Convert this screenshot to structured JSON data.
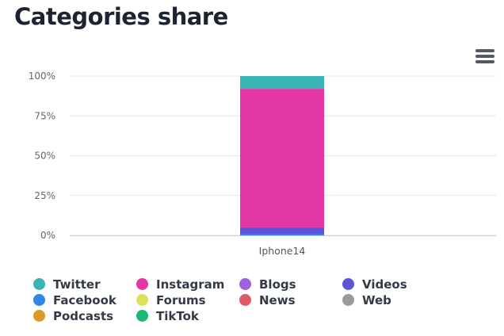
{
  "page": {
    "title": "Categories share"
  },
  "chart_data": {
    "type": "bar",
    "stacked": true,
    "percent": true,
    "categories": [
      "Iphone14"
    ],
    "ylim": [
      0,
      100
    ],
    "yticks": [
      "0%",
      "25%",
      "50%",
      "75%",
      "100%"
    ],
    "grid": true,
    "legend_position": "bottom",
    "series": [
      {
        "name": "Twitter",
        "color": "#3ab5b5",
        "values": [
          8
        ]
      },
      {
        "name": "Instagram",
        "color": "#e337a8",
        "values": [
          87
        ]
      },
      {
        "name": "Blogs",
        "color": "#a062e0",
        "values": [
          0
        ]
      },
      {
        "name": "Videos",
        "color": "#5d55d6",
        "values": [
          4
        ]
      },
      {
        "name": "Facebook",
        "color": "#2f86e8",
        "values": [
          1
        ]
      },
      {
        "name": "Forums",
        "color": "#dfe05a",
        "values": [
          0
        ]
      },
      {
        "name": "News",
        "color": "#e05a66",
        "values": [
          0
        ]
      },
      {
        "name": "Web",
        "color": "#9a9a9a",
        "values": [
          0
        ]
      },
      {
        "name": "Podcasts",
        "color": "#d99a26",
        "values": [
          0
        ]
      },
      {
        "name": "TikTok",
        "color": "#19b877",
        "values": [
          0
        ]
      }
    ]
  }
}
